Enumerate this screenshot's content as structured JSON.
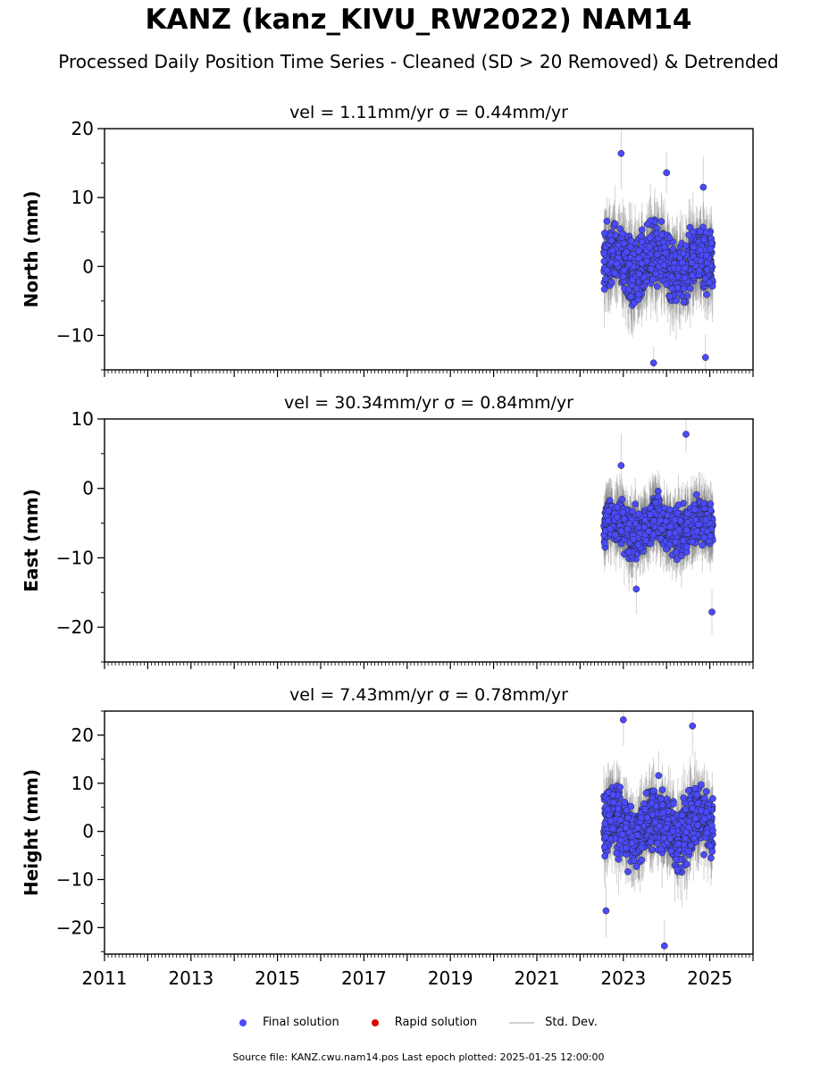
{
  "figure": {
    "title": "KANZ (kanz_KIVU_RW2022) NAM14",
    "subtitle": "Processed Daily Position Time Series - Cleaned (SD > 20 Removed) & Detrended",
    "footer": "Source file: KANZ.cwu.nam14.pos  Last epoch plotted: 2025-01-25 12:00:00"
  },
  "legend": {
    "final": "Final solution",
    "rapid": "Rapid solution",
    "std": "Std. Dev."
  },
  "colors": {
    "final": "#4a4aff",
    "rapid": "#dd0000",
    "std": "#808080",
    "axis": "#000000"
  },
  "chart_data": [
    {
      "type": "scatter",
      "title": "vel = 1.11mm/yr   σ = 0.44mm/yr",
      "ylabel": "North (mm)",
      "xlim": [
        2011,
        2026
      ],
      "ylim": [
        -15,
        20
      ],
      "yticks": [
        -10,
        0,
        10,
        20
      ],
      "data_range": [
        2022.55,
        2025.07
      ],
      "series": [
        {
          "name": "Final solution",
          "center": 0.5,
          "spread": 4.2,
          "points": [
            [
              2022.95,
              16.4
            ],
            [
              2024.0,
              13.6
            ],
            [
              2024.85,
              11.5
            ],
            [
              2023.7,
              -14.0
            ],
            [
              2024.9,
              -13.2
            ]
          ]
        }
      ]
    },
    {
      "type": "scatter",
      "title": "vel = 30.34mm/yr   σ = 0.84mm/yr",
      "ylabel": "East (mm)",
      "xlim": [
        2011,
        2026
      ],
      "ylim": [
        -25,
        10
      ],
      "yticks": [
        -20,
        -10,
        0,
        10
      ],
      "data_range": [
        2022.55,
        2025.07
      ],
      "series": [
        {
          "name": "Final solution",
          "center": -5.5,
          "spread": 3.0,
          "points": [
            [
              2024.45,
              7.8
            ],
            [
              2022.95,
              3.3
            ],
            [
              2025.05,
              -17.8
            ],
            [
              2023.3,
              -14.5
            ]
          ]
        }
      ]
    },
    {
      "type": "scatter",
      "title": "vel = 7.43mm/yr   σ = 0.78mm/yr",
      "ylabel": "Height (mm)",
      "xlim": [
        2011,
        2026
      ],
      "ylim": [
        -25.5,
        25
      ],
      "yticks": [
        -20,
        -10,
        0,
        10,
        20
      ],
      "xticks": [
        "2011",
        "2013",
        "2015",
        "2017",
        "2019",
        "2021",
        "2023",
        "2025"
      ],
      "data_range": [
        2022.55,
        2025.07
      ],
      "series": [
        {
          "name": "Final solution",
          "center": 1.0,
          "spread": 6.5,
          "points": [
            [
              2023.0,
              23.2
            ],
            [
              2024.6,
              21.9
            ],
            [
              2023.95,
              -23.8
            ],
            [
              2022.6,
              -16.5
            ]
          ]
        }
      ]
    }
  ]
}
